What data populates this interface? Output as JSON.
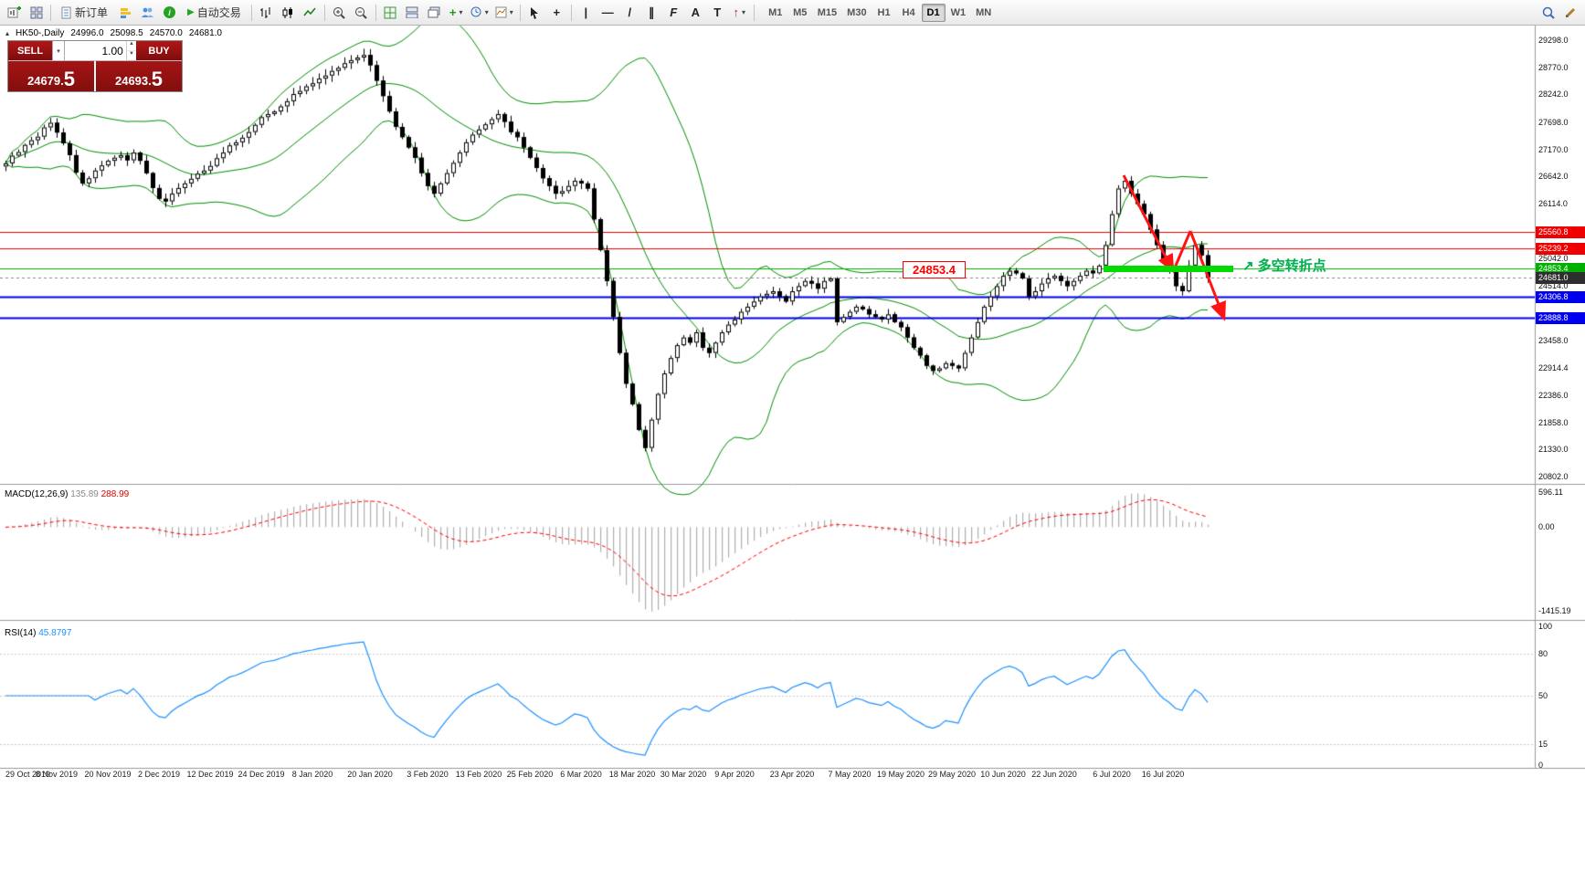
{
  "toolbar": {
    "new_order_label": "新订单",
    "autotrading_label": "自动交易",
    "timeframes": [
      "M1",
      "M5",
      "M15",
      "M30",
      "H1",
      "H4",
      "D1",
      "W1",
      "MN"
    ],
    "active_timeframe": "D1",
    "icons": {
      "play": "▶",
      "info": "i",
      "dropdown": "▾",
      "crosshair": "+",
      "vline": "|",
      "hline": "—",
      "trendline": "/",
      "channel": "∥",
      "fibo": "F",
      "text": "A",
      "label": "T",
      "arrow": "↑",
      "add_indicator": "+"
    }
  },
  "symbol_info": {
    "collapse_icon": "▴",
    "title": "HK50-,Daily",
    "open": "24996.0",
    "high": "25098.5",
    "low": "24570.0",
    "close": "24681.0"
  },
  "trade_panel": {
    "sell_label": "SELL",
    "buy_label": "BUY",
    "volume": "1.00",
    "sell_price": "24679.",
    "sell_price_big": "5",
    "buy_price": "24693.",
    "buy_price_big": "5"
  },
  "indicators": {
    "macd_title": "MACD(12,26,9)",
    "macd_main": "135.89",
    "macd_signal": "288.99",
    "rsi_title": "RSI(14)",
    "rsi_value": "45.8797"
  },
  "axis": {
    "price_ticks": [
      {
        "v": 29298.0,
        "t": "29298.0"
      },
      {
        "v": 28770.0,
        "t": "28770.0"
      },
      {
        "v": 28242.0,
        "t": "28242.0"
      },
      {
        "v": 27698.0,
        "t": "27698.0"
      },
      {
        "v": 27170.0,
        "t": "27170.0"
      },
      {
        "v": 26642.0,
        "t": "26642.0"
      },
      {
        "v": 26114.0,
        "t": "26114.0"
      },
      {
        "v": 25042.0,
        "t": "25042.0"
      },
      {
        "v": 24514.0,
        "t": "24514.0"
      },
      {
        "v": 23458.0,
        "t": "23458.0"
      },
      {
        "v": 22914.4,
        "t": "22914.4"
      },
      {
        "v": 22386.0,
        "t": "22386.0"
      },
      {
        "v": 21858.0,
        "t": "21858.0"
      },
      {
        "v": 21330.0,
        "t": "21330.0"
      },
      {
        "v": 20802.0,
        "t": "20802.0"
      }
    ],
    "macd_ticks": [
      {
        "v": 596.11,
        "t": "596.11"
      },
      {
        "v": 0,
        "t": "0.00"
      },
      {
        "v": -1415.19,
        "t": "-1415.19"
      }
    ],
    "rsi_ticks": [
      {
        "v": 100,
        "t": "100"
      },
      {
        "v": 80,
        "t": "80"
      },
      {
        "v": 50,
        "t": "50"
      },
      {
        "v": 15,
        "t": "15"
      },
      {
        "v": 0,
        "t": "0"
      }
    ],
    "date_labels": [
      {
        "text": "29 Oct 2019",
        "i": 0
      },
      {
        "text": "8 Nov 2019",
        "i": 8
      },
      {
        "text": "20 Nov 2019",
        "i": 16
      },
      {
        "text": "2 Dec 2019",
        "i": 24
      },
      {
        "text": "12 Dec 2019",
        "i": 32
      },
      {
        "text": "24 Dec 2019",
        "i": 40
      },
      {
        "text": "8 Jan 2020",
        "i": 48
      },
      {
        "text": "20 Jan 2020",
        "i": 57
      },
      {
        "text": "3 Feb 2020",
        "i": 66
      },
      {
        "text": "13 Feb 2020",
        "i": 74
      },
      {
        "text": "25 Feb 2020",
        "i": 82
      },
      {
        "text": "6 Mar 2020",
        "i": 90
      },
      {
        "text": "18 Mar 2020",
        "i": 98
      },
      {
        "text": "30 Mar 2020",
        "i": 106
      },
      {
        "text": "9 Apr 2020",
        "i": 114
      },
      {
        "text": "23 Apr 2020",
        "i": 123
      },
      {
        "text": "7 May 2020",
        "i": 132
      },
      {
        "text": "19 May 2020",
        "i": 140
      },
      {
        "text": "29 May 2020",
        "i": 148
      },
      {
        "text": "10 Jun 2020",
        "i": 156
      },
      {
        "text": "22 Jun 2020",
        "i": 164
      },
      {
        "text": "6 Jul 2020",
        "i": 173
      },
      {
        "text": "16 Jul 2020",
        "i": 181
      }
    ]
  },
  "current_price": {
    "value": 24681.0,
    "label": "24681.0",
    "color": "#2e2e2e"
  },
  "annotations": {
    "price_label": "24853.4",
    "note": "多空转折点",
    "note_icon": "↗"
  },
  "chart_data": {
    "type": "candlestick",
    "symbol": "HK50",
    "timeframe": "Daily",
    "title": "HK50-,Daily",
    "ylim": [
      20695,
      29494
    ],
    "bollinger": {
      "period": 20,
      "deviation": 2
    },
    "macd": {
      "fast": 12,
      "slow": 26,
      "signal": 9,
      "range": [
        -1500,
        650
      ]
    },
    "rsi": {
      "period": 14,
      "range": [
        0,
        100
      ],
      "levels": [
        80,
        50,
        15
      ]
    },
    "levels": [
      {
        "price": 25560.8,
        "color": "#ee0000",
        "label": "25560.8",
        "width": 1
      },
      {
        "price": 25239.2,
        "color": "#ee0000",
        "label": "25239.2",
        "width": 1
      },
      {
        "price": 24853.4,
        "color": "#00b000",
        "label": "24853.4",
        "width": 1
      },
      {
        "price": 24306.8,
        "color": "#0000ee",
        "label": "24306.8",
        "width": 2
      },
      {
        "price": 23888.8,
        "color": "#0000ee",
        "label": "23888.8",
        "width": 2
      }
    ],
    "closes": [
      26900,
      27050,
      27120,
      27260,
      27350,
      27420,
      27600,
      27690,
      27500,
      27290,
      27060,
      26720,
      26510,
      26610,
      26760,
      26860,
      26950,
      27010,
      27060,
      26960,
      27110,
      26950,
      26710,
      26420,
      26210,
      26160,
      26310,
      26420,
      26510,
      26600,
      26700,
      26760,
      26850,
      27000,
      27110,
      27250,
      27310,
      27400,
      27510,
      27650,
      27800,
      27860,
      27910,
      28010,
      28110,
      28250,
      28310,
      28400,
      28460,
      28550,
      28610,
      28700,
      28760,
      28850,
      28910,
      28960,
      29010,
      28810,
      28510,
      28210,
      27910,
      27610,
      27410,
      27210,
      27010,
      26710,
      26460,
      26310,
      26510,
      26710,
      26910,
      27110,
      27310,
      27460,
      27560,
      27660,
      27760,
      27860,
      27710,
      27510,
      27410,
      27210,
      27010,
      26810,
      26610,
      26460,
      26310,
      26360,
      26460,
      26560,
      26510,
      26410,
      25810,
      25210,
      24610,
      23910,
      23210,
      22610,
      22210,
      21710,
      21360,
      21910,
      22410,
      22810,
      23110,
      23360,
      23510,
      23410,
      23610,
      23310,
      23210,
      23410,
      23610,
      23760,
      23860,
      24010,
      24110,
      24210,
      24310,
      24360,
      24410,
      24310,
      24210,
      24410,
      24510,
      24610,
      24560,
      24460,
      24610,
      24660,
      23810,
      23910,
      24010,
      24110,
      24060,
      23960,
      23910,
      23860,
      23960,
      23810,
      23710,
      23510,
      23310,
      23160,
      22960,
      22860,
      22910,
      23010,
      22960,
      22910,
      23210,
      23510,
      23810,
      24110,
      24310,
      24510,
      24710,
      24810,
      24760,
      24660,
      24310,
      24410,
      24560,
      24660,
      24710,
      24610,
      24510,
      24610,
      24710,
      24810,
      24760,
      24910,
      25310,
      25910,
      26410,
      26560,
      26310,
      26110,
      25910,
      25610,
      25310,
      25010,
      24810,
      24510,
      24410,
      24910,
      25310,
      25110,
      24681
    ]
  }
}
